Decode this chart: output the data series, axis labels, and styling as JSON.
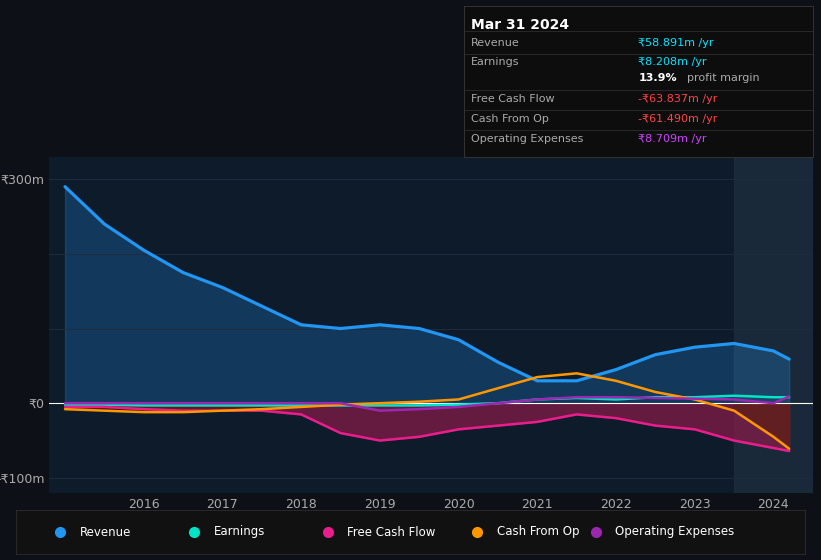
{
  "bg_color": "#0d1117",
  "plot_bg_color": "#0d1b2a",
  "grid_color": "#1e2d3d",
  "zero_line_color": "#ffffff",
  "title_box": {
    "title": "Mar 31 2024",
    "rows": [
      {
        "label": "Revenue",
        "value": "₹58.891m /yr",
        "value_color": "#00e5ff"
      },
      {
        "label": "Earnings",
        "value": "₹8.208m /yr",
        "value_color": "#00e5ff"
      },
      {
        "label": "",
        "value": "13.9% profit margin",
        "value_color": "#ffffff"
      },
      {
        "label": "Free Cash Flow",
        "value": "-₹63.837m /yr",
        "value_color": "#ff4444"
      },
      {
        "label": "Cash From Op",
        "value": "-₹61.490m /yr",
        "value_color": "#ff4444"
      },
      {
        "label": "Operating Expenses",
        "value": "₹8.709m /yr",
        "value_color": "#cc44ff"
      }
    ]
  },
  "years": [
    2015,
    2015.5,
    2016,
    2016.5,
    2017,
    2017.5,
    2018,
    2018.5,
    2019,
    2019.5,
    2020,
    2020.5,
    2021,
    2021.5,
    2022,
    2022.5,
    2023,
    2023.5,
    2024,
    2024.2
  ],
  "revenue": [
    290,
    240,
    205,
    175,
    155,
    130,
    105,
    100,
    105,
    100,
    85,
    55,
    30,
    30,
    45,
    65,
    75,
    80,
    70,
    59
  ],
  "earnings": [
    -2,
    -2,
    -3,
    -3,
    -3,
    -3,
    -3,
    -3,
    -3,
    -3,
    -2,
    0,
    5,
    7,
    5,
    8,
    8,
    10,
    8,
    8
  ],
  "free_cash_flow": [
    -5,
    -5,
    -8,
    -10,
    -10,
    -10,
    -15,
    -40,
    -50,
    -45,
    -35,
    -30,
    -25,
    -15,
    -20,
    -30,
    -35,
    -50,
    -60,
    -64
  ],
  "cash_from_op": [
    -8,
    -10,
    -12,
    -12,
    -10,
    -8,
    -5,
    -2,
    0,
    2,
    5,
    20,
    35,
    40,
    30,
    15,
    5,
    -10,
    -45,
    -61
  ],
  "operating_expenses": [
    0,
    0,
    0,
    0,
    0,
    0,
    0,
    0,
    -10,
    -8,
    -5,
    0,
    5,
    8,
    8,
    7,
    6,
    5,
    0,
    9
  ],
  "highlight_x_start": 2023.5,
  "ylim": [
    -120,
    330
  ],
  "yticks": [
    -100,
    0,
    300
  ],
  "ytick_labels": [
    "-₹100m",
    "₹0",
    "₹300m"
  ],
  "xticks": [
    2016,
    2017,
    2018,
    2019,
    2020,
    2021,
    2022,
    2023,
    2024
  ],
  "series_colors": {
    "revenue": "#2196f3",
    "earnings": "#00e5c8",
    "free_cash_flow": "#e91e8c",
    "cash_from_op": "#ff9800",
    "operating_expenses": "#9c27b0"
  },
  "legend_labels": [
    "Revenue",
    "Earnings",
    "Free Cash Flow",
    "Cash From Op",
    "Operating Expenses"
  ],
  "legend_colors": [
    "#2196f3",
    "#00e5c8",
    "#e91e8c",
    "#ff9800",
    "#9c27b0"
  ]
}
